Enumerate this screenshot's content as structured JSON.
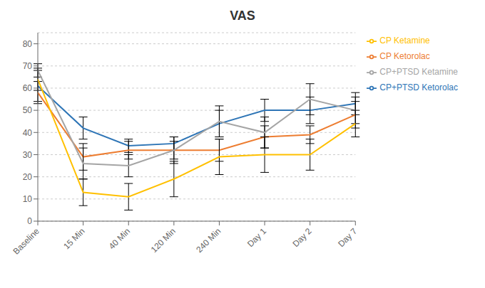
{
  "chart_data": {
    "type": "line",
    "title": "VAS",
    "categories": [
      "Baseline",
      "15 Min",
      "40 Min",
      "120 Min",
      "240 Min",
      "Day 1",
      "Day 2",
      "Day 7"
    ],
    "series": [
      {
        "name": "CP+PTSD Ketorolac",
        "color": "#2E75B6",
        "values": [
          61,
          42,
          34,
          35,
          44,
          50,
          50,
          53
        ],
        "yerr": [
          7,
          5,
          3,
          3,
          6,
          5,
          6,
          5
        ]
      },
      {
        "name": "CP Ketorolac",
        "color": "#ED7D31",
        "values": [
          58,
          29,
          32,
          32,
          32,
          38,
          39,
          48
        ],
        "yerr": [
          5,
          6,
          4,
          4,
          5,
          5,
          4,
          6
        ]
      },
      {
        "name": "CP+PTSD Ketamine",
        "color": "#A5A5A5",
        "values": [
          68,
          26,
          25,
          32,
          45,
          40,
          55,
          50
        ],
        "yerr": [
          3,
          7,
          5,
          6,
          7,
          7,
          7,
          6
        ]
      },
      {
        "name": "CP Ketamine",
        "color": "#FFC000",
        "values": [
          64,
          13,
          11,
          19,
          29,
          30,
          30,
          44
        ],
        "yerr": [
          5,
          6,
          6,
          8,
          8,
          8,
          7,
          6
        ]
      }
    ],
    "ylim": [
      0,
      85
    ],
    "yticks": [
      0,
      10,
      20,
      30,
      40,
      50,
      60,
      70,
      80
    ],
    "grid": true,
    "legend": "right"
  }
}
